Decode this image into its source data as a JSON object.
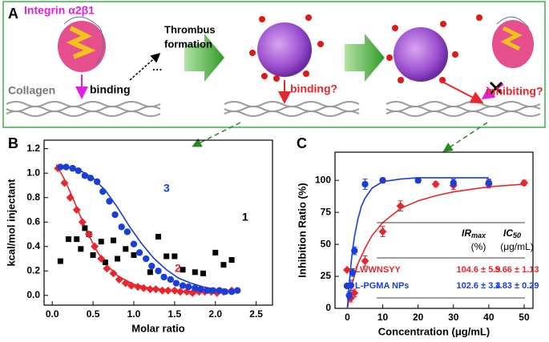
{
  "panel_a": {
    "label": "A",
    "integrin": "Integrin α2β1",
    "collagen": "Collagen",
    "binding": "binding",
    "thrombus": [
      "Thrombus",
      "formation"
    ],
    "ellipsis": "···",
    "binding_q": "binding?",
    "inhibiting_q": "inhibiting?"
  },
  "chart_data": [
    {
      "type": "scatter",
      "panel": "B",
      "xlabel": "Molar ratio",
      "ylabel": "kcal/mol injectant",
      "xlim": [
        -0.1,
        2.7
      ],
      "ylim": [
        -0.08,
        1.27
      ],
      "xticks": [
        {
          "value": 0,
          "label": "0.0"
        },
        0.5,
        {
          "value": 1,
          "label": "1.0"
        },
        1.5,
        {
          "value": 2,
          "label": "2.0"
        },
        2.5
      ],
      "yticks": [
        {
          "value": 0,
          "label": "0.0"
        },
        0.2,
        0.4,
        0.6,
        0.8,
        {
          "value": 1,
          "label": "1.0"
        },
        1.2
      ],
      "series": [
        {
          "name": "1",
          "color": "#000000",
          "marker": "square",
          "x": [
            0.1,
            0.2,
            0.3,
            0.35,
            0.4,
            0.45,
            0.5,
            0.6,
            0.65,
            0.75,
            0.8,
            0.9,
            1.0,
            1.2,
            1.3,
            1.4,
            1.5,
            1.6,
            1.75,
            1.85,
            2.0,
            2.1,
            2.2
          ],
          "values": [
            0.28,
            0.46,
            0.46,
            0.38,
            0.55,
            0.5,
            0.33,
            0.44,
            0.27,
            0.45,
            0.3,
            0.38,
            0.33,
            0.19,
            0.48,
            0.32,
            0.32,
            0.21,
            0.19,
            0.18,
            0.35,
            0.25,
            0.29
          ]
        },
        {
          "name": "2",
          "color": "#e8262b",
          "marker": "diamond",
          "x": [
            0.07,
            0.15,
            0.22,
            0.3,
            0.37,
            0.45,
            0.52,
            0.6,
            0.67,
            0.75,
            0.82,
            0.9,
            0.97,
            1.05,
            1.12,
            1.2,
            1.27,
            1.35,
            1.42,
            1.5,
            1.57,
            1.65,
            1.72,
            1.8,
            1.87,
            1.95,
            2.02,
            2.1,
            2.2
          ],
          "values": [
            1.04,
            0.92,
            0.8,
            0.7,
            0.6,
            0.5,
            0.4,
            0.3,
            0.22,
            0.18,
            0.13,
            0.1,
            0.08,
            0.07,
            0.06,
            0.05,
            0.05,
            0.04,
            0.04,
            0.04,
            0.03,
            0.03,
            0.02,
            0.03,
            0.03,
            0.03,
            0.02,
            0.03,
            0.04
          ]
        },
        {
          "name": "3",
          "color": "#1a3fd8",
          "marker": "circle",
          "x": [
            0.1,
            0.17,
            0.25,
            0.32,
            0.4,
            0.47,
            0.55,
            0.62,
            0.7,
            0.77,
            0.85,
            0.92,
            1.0,
            1.07,
            1.15,
            1.22,
            1.3,
            1.37,
            1.45,
            1.52,
            1.6,
            1.67,
            1.75,
            1.82,
            1.9,
            1.97,
            2.05,
            2.12,
            2.2,
            2.27
          ],
          "values": [
            1.05,
            1.05,
            1.04,
            1.02,
            0.98,
            0.96,
            0.93,
            0.85,
            0.77,
            0.66,
            0.56,
            0.52,
            0.42,
            0.35,
            0.3,
            0.24,
            0.2,
            0.15,
            0.13,
            0.1,
            0.08,
            0.07,
            0.06,
            0.05,
            0.04,
            0.04,
            0.04,
            0.03,
            0.03,
            0.04
          ]
        }
      ],
      "fits": [
        {
          "color": "#e8262b",
          "x": [
            0.05,
            0.15,
            0.25,
            0.35,
            0.45,
            0.55,
            0.65,
            0.8,
            1.0,
            1.2,
            1.5,
            1.8,
            2.1,
            2.3
          ],
          "values": [
            1.07,
            0.95,
            0.8,
            0.64,
            0.49,
            0.36,
            0.26,
            0.16,
            0.09,
            0.06,
            0.04,
            0.03,
            0.03,
            0.03
          ]
        },
        {
          "color": "#1a3fd8",
          "x": [
            0.05,
            0.2,
            0.35,
            0.5,
            0.65,
            0.8,
            0.95,
            1.1,
            1.25,
            1.4,
            1.55,
            1.7,
            1.85,
            2.0,
            2.15,
            2.3
          ],
          "values": [
            1.06,
            1.05,
            1.02,
            0.96,
            0.86,
            0.72,
            0.56,
            0.42,
            0.3,
            0.21,
            0.14,
            0.1,
            0.07,
            0.05,
            0.04,
            0.03
          ]
        }
      ]
    },
    {
      "type": "scatter",
      "panel": "C",
      "xlabel": "Concentration (μg/mL)",
      "ylabel": "Inhibition Ratio (%)",
      "xlim": [
        -3.5,
        52.5
      ],
      "ylim": [
        0,
        122
      ],
      "xticks": [
        0,
        10,
        20,
        30,
        40,
        50
      ],
      "yticks": [
        0,
        25,
        50,
        75,
        100
      ],
      "series": [
        {
          "name": "LWWNSYY",
          "color": "#e8262b",
          "marker": "diamond",
          "x": [
            1,
            2,
            5,
            10,
            15,
            25,
            30,
            40,
            50
          ],
          "values": [
            8,
            12,
            37,
            60,
            80,
            97,
            96,
            97,
            98
          ],
          "errors": [
            3,
            3,
            4,
            4,
            4,
            2,
            3,
            3,
            2
          ]
        },
        {
          "name": "L-PGMA NPs",
          "color": "#1a3fd8",
          "marker": "circle",
          "x": [
            0.5,
            1,
            1.5,
            2,
            5,
            10,
            20,
            30,
            40
          ],
          "values": [
            10,
            18,
            28,
            45,
            97,
            100,
            100,
            98,
            98
          ],
          "errors": [
            3,
            4,
            3,
            3,
            4,
            2,
            2,
            3,
            3
          ]
        }
      ],
      "fits": [
        {
          "color": "#e8262b",
          "x": [
            0,
            1,
            2,
            3,
            5,
            7,
            10,
            15,
            20,
            25,
            30,
            40,
            50
          ],
          "values": [
            0,
            15,
            26,
            35,
            47,
            57,
            67,
            78,
            84,
            88,
            91,
            95,
            97
          ]
        },
        {
          "color": "#1a3fd8",
          "x": [
            0,
            0.5,
            1,
            1.5,
            2,
            3,
            4,
            5,
            7,
            10,
            15,
            20,
            30,
            40
          ],
          "values": [
            0,
            18,
            34,
            46,
            56,
            70,
            80,
            86,
            94,
            99,
            101,
            102,
            102,
            102
          ]
        }
      ],
      "table": {
        "header": [
          {
            "main": "IR",
            "sub": "max",
            "unit": "(%)"
          },
          {
            "main": "IC",
            "sub": "50",
            "unit": "(μg/mL)"
          }
        ],
        "rows": [
          [
            "104.6 ± 5.9",
            "5.66 ± 1.13"
          ],
          [
            "102.6 ± 3.4",
            "1.83 ± 0.29"
          ]
        ]
      }
    }
  ]
}
